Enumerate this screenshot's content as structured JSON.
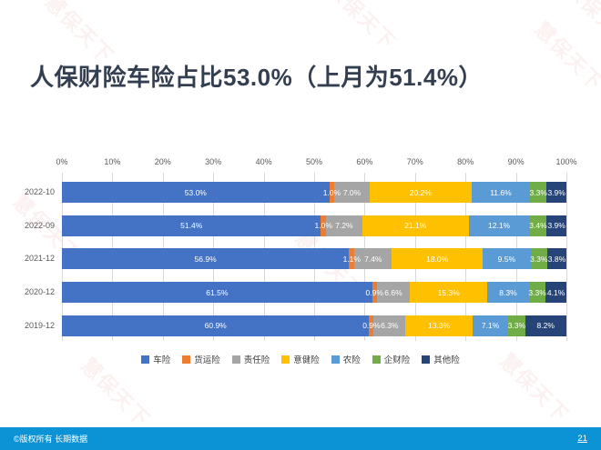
{
  "slide": {
    "title": "人保财险车险占比53.0%（上月为51.4%）",
    "watermark_text": "慧保天下",
    "footer": {
      "copyright": "©版权所有 长期数据",
      "page_number": "21",
      "bar_color": "#0B93D6"
    }
  },
  "chart_data": {
    "type": "bar",
    "variant": "horizontal-stacked-100",
    "categories": [
      "2022-10",
      "2022-09",
      "2021-12",
      "2020-12",
      "2019-12"
    ],
    "series": [
      {
        "name": "车险",
        "color": "#4472C4",
        "values": [
          53.0,
          51.4,
          56.9,
          61.5,
          60.9
        ]
      },
      {
        "name": "货运险",
        "color": "#ED7D31",
        "values": [
          1.0,
          1.0,
          1.1,
          0.9,
          0.9
        ]
      },
      {
        "name": "责任险",
        "color": "#A5A5A5",
        "values": [
          7.0,
          7.2,
          7.4,
          6.6,
          6.3
        ]
      },
      {
        "name": "意健险",
        "color": "#FFC000",
        "values": [
          20.2,
          21.1,
          18.0,
          15.3,
          13.3
        ]
      },
      {
        "name": "农险",
        "color": "#5B9BD5",
        "values": [
          11.6,
          12.1,
          9.5,
          8.3,
          7.1
        ]
      },
      {
        "name": "企财险",
        "color": "#70AD47",
        "values": [
          3.3,
          3.4,
          3.3,
          3.3,
          3.3
        ]
      },
      {
        "name": "其他险",
        "color": "#264478",
        "values": [
          3.9,
          3.9,
          3.8,
          4.1,
          8.2
        ]
      }
    ],
    "x_axis": {
      "ticks": [
        "0%",
        "10%",
        "20%",
        "30%",
        "40%",
        "50%",
        "60%",
        "70%",
        "80%",
        "90%",
        "100%"
      ],
      "range": [
        0,
        100
      ]
    },
    "value_label_suffix": "%",
    "grid": true,
    "legend_position": "bottom"
  }
}
